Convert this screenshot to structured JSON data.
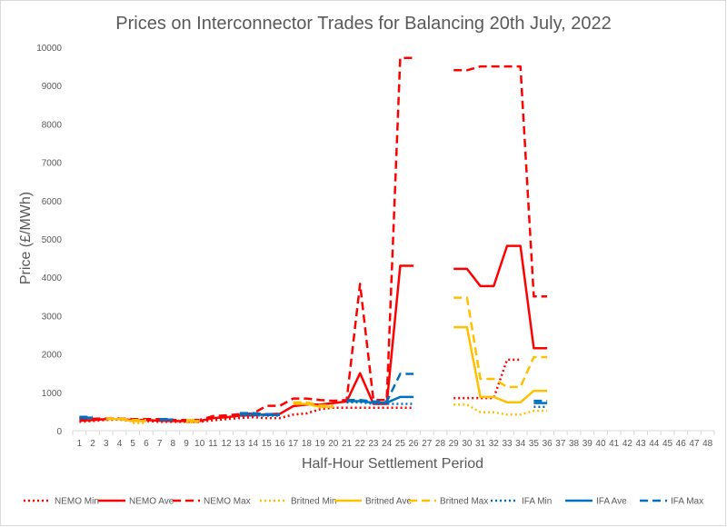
{
  "chart_data": {
    "type": "line",
    "title": "Prices on Interconnector Trades for Balancing 20th July, 2022",
    "xlabel": "Half-Hour Settlement Period",
    "ylabel": "Price (£/MWh)",
    "ylim": [
      0,
      10000
    ],
    "yticks": [
      "0",
      "1000",
      "2000",
      "3000",
      "4000",
      "5000",
      "6000",
      "7000",
      "8000",
      "9000",
      "10000"
    ],
    "categories": [
      "1",
      "2",
      "3",
      "4",
      "5",
      "6",
      "7",
      "8",
      "9",
      "10",
      "11",
      "12",
      "13",
      "14",
      "15",
      "16",
      "17",
      "18",
      "19",
      "20",
      "21",
      "22",
      "23",
      "24",
      "25",
      "26",
      "27",
      "28",
      "29",
      "30",
      "31",
      "32",
      "33",
      "34",
      "35",
      "36",
      "37",
      "38",
      "39",
      "40",
      "41",
      "42",
      "43",
      "44",
      "45",
      "46",
      "47",
      "48"
    ],
    "grid": false,
    "legend": "bottom",
    "series": [
      {
        "name": "NEMO Min",
        "color": "#ff0000",
        "dash": "dotted",
        "values": [
          230,
          250,
          280,
          290,
          250,
          250,
          230,
          230,
          230,
          230,
          270,
          300,
          330,
          350,
          330,
          330,
          420,
          450,
          560,
          600,
          600,
          600,
          600,
          600,
          600,
          600,
          null,
          null,
          850,
          850,
          850,
          850,
          1850,
          1850,
          null,
          null,
          null,
          null,
          null,
          null,
          null,
          null,
          null,
          null,
          null,
          null,
          null,
          null
        ]
      },
      {
        "name": "NEMO Ave",
        "color": "#ff0000",
        "dash": "solid",
        "values": [
          260,
          280,
          300,
          300,
          280,
          280,
          260,
          250,
          250,
          250,
          330,
          350,
          390,
          400,
          430,
          440,
          640,
          680,
          680,
          720,
          760,
          1500,
          700,
          700,
          4300,
          4300,
          null,
          null,
          4220,
          4220,
          3770,
          3770,
          4820,
          4820,
          2150,
          2150,
          null,
          null,
          null,
          null,
          null,
          null,
          null,
          null,
          null,
          null,
          null,
          null
        ]
      },
      {
        "name": "NEMO Max",
        "color": "#ff0000",
        "dash": "dashed",
        "values": [
          300,
          310,
          320,
          320,
          300,
          300,
          300,
          280,
          280,
          280,
          380,
          400,
          430,
          450,
          650,
          650,
          840,
          840,
          800,
          780,
          800,
          3830,
          800,
          800,
          9720,
          9720,
          null,
          null,
          9400,
          9400,
          9500,
          9500,
          9500,
          9500,
          3500,
          3500,
          null,
          null,
          null,
          null,
          null,
          null,
          null,
          null,
          null,
          null,
          null,
          null
        ]
      },
      {
        "name": "Britned Min",
        "color": "#ffc000",
        "dash": "dotted",
        "values": [
          null,
          null,
          null,
          null,
          200,
          200,
          null,
          null,
          220,
          220,
          null,
          null,
          null,
          null,
          null,
          null,
          null,
          null,
          null,
          null,
          null,
          null,
          null,
          null,
          null,
          null,
          null,
          null,
          680,
          680,
          480,
          480,
          420,
          420,
          520,
          520,
          null,
          null,
          null,
          null,
          null,
          null,
          null,
          null,
          null,
          null,
          null,
          null
        ]
      },
      {
        "name": "Britned Ave",
        "color": "#ffc000",
        "dash": "solid",
        "values": [
          null,
          null,
          300,
          300,
          250,
          250,
          null,
          null,
          250,
          250,
          null,
          null,
          null,
          null,
          null,
          null,
          700,
          700,
          620,
          620,
          null,
          null,
          null,
          null,
          null,
          null,
          null,
          null,
          2700,
          2700,
          880,
          880,
          740,
          740,
          1040,
          1040,
          null,
          null,
          null,
          null,
          null,
          null,
          null,
          null,
          null,
          null,
          null,
          null
        ]
      },
      {
        "name": "Britned Max",
        "color": "#ffc000",
        "dash": "dashed",
        "values": [
          null,
          null,
          320,
          320,
          280,
          280,
          null,
          null,
          280,
          280,
          null,
          null,
          null,
          null,
          null,
          null,
          740,
          740,
          660,
          660,
          null,
          null,
          null,
          null,
          null,
          null,
          null,
          null,
          3470,
          3470,
          1350,
          1350,
          1140,
          1140,
          1920,
          1920,
          null,
          null,
          null,
          null,
          null,
          null,
          null,
          null,
          null,
          null,
          null,
          null
        ]
      },
      {
        "name": "IFA Min",
        "color": "#0070c0",
        "dash": "dotted",
        "values": [
          320,
          320,
          null,
          null,
          null,
          null,
          280,
          280,
          null,
          null,
          null,
          null,
          400,
          400,
          390,
          390,
          null,
          null,
          null,
          null,
          740,
          740,
          700,
          700,
          700,
          700,
          null,
          null,
          null,
          null,
          null,
          null,
          null,
          null,
          620,
          620,
          null,
          null,
          null,
          null,
          null,
          null,
          null,
          null,
          null,
          null,
          null,
          null
        ]
      },
      {
        "name": "IFA Ave",
        "color": "#0070c0",
        "dash": "solid",
        "values": [
          340,
          340,
          null,
          null,
          null,
          null,
          290,
          290,
          null,
          null,
          null,
          null,
          430,
          430,
          410,
          410,
          null,
          null,
          null,
          null,
          770,
          770,
          730,
          730,
          880,
          880,
          null,
          null,
          null,
          null,
          null,
          null,
          null,
          null,
          720,
          720,
          null,
          null,
          null,
          null,
          null,
          null,
          null,
          null,
          null,
          null,
          null,
          null
        ]
      },
      {
        "name": "IFA Max",
        "color": "#0070c0",
        "dash": "dashed",
        "values": [
          360,
          360,
          null,
          null,
          null,
          null,
          300,
          300,
          null,
          null,
          null,
          null,
          460,
          460,
          430,
          430,
          null,
          null,
          null,
          null,
          800,
          800,
          760,
          760,
          1480,
          1480,
          null,
          null,
          null,
          null,
          null,
          null,
          null,
          null,
          780,
          780,
          null,
          null,
          null,
          null,
          null,
          null,
          null,
          null,
          null,
          null,
          null,
          null
        ]
      }
    ]
  }
}
